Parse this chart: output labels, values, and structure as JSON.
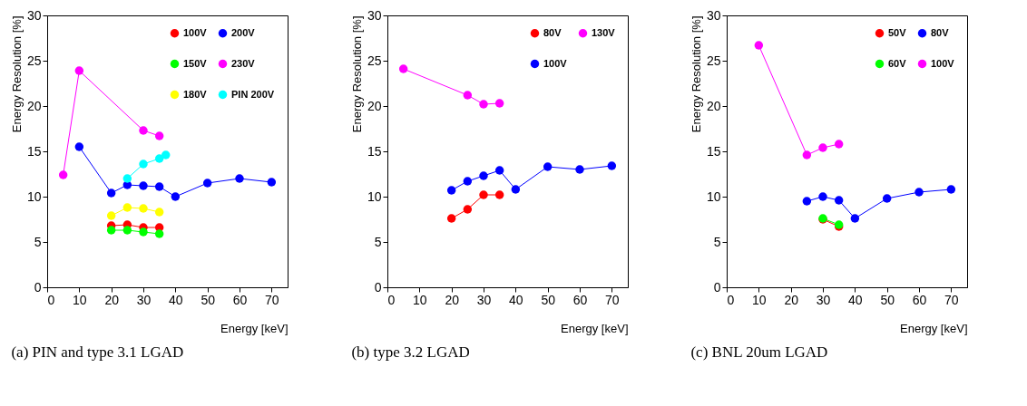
{
  "chart_data": [
    {
      "type": "line",
      "xlabel": "Energy [keV]",
      "ylabel": "Energy Resolution [%]",
      "xlim": [
        0,
        75
      ],
      "ylim": [
        0,
        30
      ],
      "xticks": [
        0,
        10,
        20,
        30,
        40,
        50,
        60,
        70
      ],
      "yticks": [
        0,
        5,
        10,
        15,
        20,
        25,
        30
      ],
      "grid": false,
      "legend": "top right",
      "marker": "circle",
      "line_style": "solid",
      "annotations": [
        "(a) PIN and type 3.1 LGAD"
      ],
      "series": [
        {
          "name": "100V",
          "color": "#ff0000",
          "x": [
            20,
            25,
            30,
            35
          ],
          "values": [
            6.8,
            6.9,
            6.6,
            6.6
          ]
        },
        {
          "name": "150V",
          "color": "#00ff00",
          "x": [
            20,
            25,
            30,
            35
          ],
          "values": [
            6.3,
            6.3,
            6.1,
            5.9
          ]
        },
        {
          "name": "180V",
          "color": "#ffff00",
          "x": [
            20,
            25,
            30,
            35
          ],
          "values": [
            7.9,
            8.8,
            8.7,
            8.3
          ]
        },
        {
          "name": "200V",
          "color": "#0000ff",
          "x": [
            10,
            20,
            25,
            30,
            35,
            40,
            50,
            60,
            70
          ],
          "values": [
            15.5,
            10.4,
            11.3,
            11.2,
            11.1,
            10.0,
            11.5,
            12.0,
            11.6
          ]
        },
        {
          "name": "230V",
          "color": "#ff00ff",
          "x": [
            5,
            10,
            30,
            35
          ],
          "values": [
            12.4,
            23.9,
            17.3,
            16.7
          ]
        },
        {
          "name": "PIN 200V",
          "color": "#00ffff",
          "x": [
            25,
            30,
            35,
            37
          ],
          "values": [
            12.0,
            13.6,
            14.2,
            14.6
          ]
        }
      ]
    },
    {
      "type": "line",
      "xlabel": "Energy [keV]",
      "ylabel": "Energy Resolution [%]",
      "xlim": [
        0,
        75
      ],
      "ylim": [
        0,
        30
      ],
      "xticks": [
        0,
        10,
        20,
        30,
        40,
        50,
        60,
        70
      ],
      "yticks": [
        0,
        5,
        10,
        15,
        20,
        25,
        30
      ],
      "grid": false,
      "legend": "top right",
      "marker": "circle",
      "line_style": "solid",
      "annotations": [
        "(b) type 3.2 LGAD"
      ],
      "series": [
        {
          "name": "80V",
          "color": "#ff0000",
          "x": [
            20,
            25,
            30,
            35
          ],
          "values": [
            7.6,
            8.6,
            10.2,
            10.2
          ]
        },
        {
          "name": "100V",
          "color": "#0000ff",
          "x": [
            20,
            25,
            30,
            35,
            40,
            50,
            60,
            70
          ],
          "values": [
            10.7,
            11.7,
            12.3,
            12.9,
            10.8,
            13.3,
            13.0,
            13.4
          ]
        },
        {
          "name": "130V",
          "color": "#ff00ff",
          "x": [
            5,
            25,
            30,
            35
          ],
          "values": [
            24.1,
            21.2,
            20.2,
            20.3
          ]
        }
      ]
    },
    {
      "type": "line",
      "xlabel": "Energy [keV]",
      "ylabel": "Energy Resolution [%]",
      "xlim": [
        0,
        75
      ],
      "ylim": [
        0,
        30
      ],
      "xticks": [
        0,
        10,
        20,
        30,
        40,
        50,
        60,
        70
      ],
      "yticks": [
        0,
        5,
        10,
        15,
        20,
        25,
        30
      ],
      "grid": false,
      "legend": "top right",
      "marker": "circle",
      "line_style": "solid",
      "annotations": [
        "(c) BNL 20um LGAD"
      ],
      "series": [
        {
          "name": "50V",
          "color": "#ff0000",
          "x": [
            30,
            35
          ],
          "values": [
            7.5,
            6.7
          ]
        },
        {
          "name": "60V",
          "color": "#00ff00",
          "x": [
            30,
            35
          ],
          "values": [
            7.6,
            6.9
          ]
        },
        {
          "name": "80V",
          "color": "#0000ff",
          "x": [
            25,
            30,
            35,
            40,
            50,
            60,
            70
          ],
          "values": [
            9.5,
            10.0,
            9.6,
            7.6,
            9.8,
            10.5,
            10.8
          ]
        },
        {
          "name": "100V",
          "color": "#ff00ff",
          "x": [
            10,
            25,
            30,
            35
          ],
          "values": [
            26.7,
            14.6,
            15.4,
            15.8
          ]
        }
      ]
    }
  ]
}
